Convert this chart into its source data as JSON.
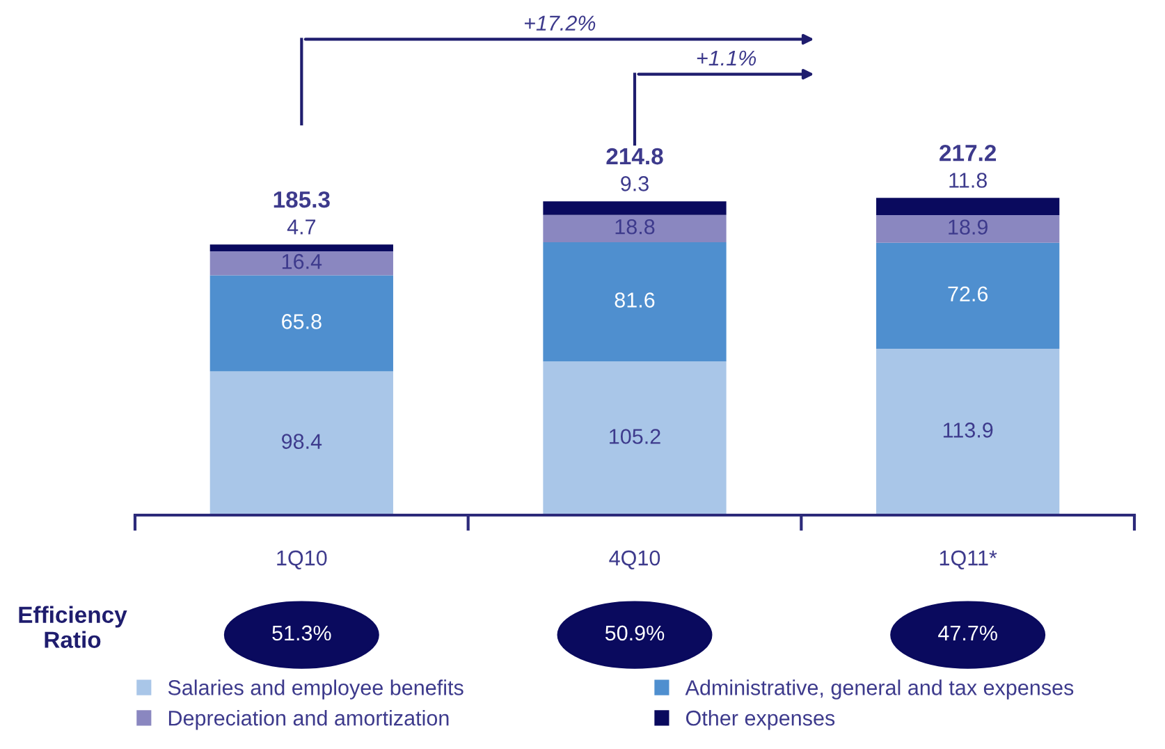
{
  "chart_data": {
    "type": "bar",
    "stacked": true,
    "data_labels": true,
    "grid": false,
    "legend": "bottom",
    "categories": [
      "1Q10",
      "4Q10",
      "1Q11*"
    ],
    "series": [
      {
        "name": "Salaries and employee benefits",
        "color": "#a9c6e8",
        "values": [
          98.4,
          105.2,
          113.9
        ]
      },
      {
        "name": "Administrative, general and tax expenses",
        "color": "#4f8fcf",
        "values": [
          65.8,
          81.6,
          72.6
        ]
      },
      {
        "name": "Depreciation and amortization",
        "color": "#8a87c0",
        "values": [
          16.4,
          18.8,
          18.9
        ]
      },
      {
        "name": "Other expenses",
        "color": "#0a0a5e",
        "values": [
          4.7,
          9.3,
          11.8
        ]
      }
    ],
    "totals": [
      "185.3",
      "214.8",
      "217.2"
    ],
    "annotations": [
      "+17.2%",
      "+1.1%",
      "Efficiency Ratio",
      "51.3%",
      "50.9%",
      "47.7%"
    ]
  }
}
